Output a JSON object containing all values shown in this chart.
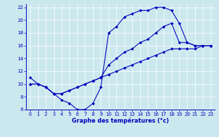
{
  "title": "Graphe des températures (°c)",
  "background_color": "#cce8ef",
  "line_color": "#0000bb",
  "xlim": [
    -0.5,
    23.5
  ],
  "ylim": [
    6,
    22.5
  ],
  "xticks": [
    0,
    1,
    2,
    3,
    4,
    5,
    6,
    7,
    8,
    9,
    10,
    11,
    12,
    13,
    14,
    15,
    16,
    17,
    18,
    19,
    20,
    21,
    22,
    23
  ],
  "yticks": [
    6,
    8,
    10,
    12,
    14,
    16,
    18,
    20,
    22
  ],
  "line1_x": [
    0,
    1,
    2,
    3,
    4,
    5,
    6,
    7,
    8,
    9,
    10,
    11,
    12,
    13,
    14,
    15,
    16,
    17,
    18,
    19,
    20,
    21,
    22,
    23
  ],
  "line1_y": [
    11,
    10,
    9.5,
    8.5,
    7.5,
    7.0,
    6.0,
    6.0,
    7.0,
    9.5,
    18.0,
    19.0,
    20.5,
    21.0,
    21.5,
    21.5,
    22.0,
    22.0,
    21.5,
    19.5,
    16.5,
    16.0,
    16.0,
    16.0
  ],
  "line2_x": [
    0,
    1,
    2,
    3,
    4,
    5,
    6,
    7,
    8,
    9,
    10,
    11,
    12,
    13,
    14,
    15,
    16,
    17,
    18,
    19,
    20,
    21,
    22,
    23
  ],
  "line2_y": [
    10,
    10,
    9.5,
    8.5,
    8.5,
    9.0,
    9.5,
    10.0,
    10.5,
    11.0,
    13.0,
    14.0,
    15.0,
    15.5,
    16.5,
    17.0,
    18.0,
    19.0,
    19.5,
    16.5,
    16.5,
    16.0,
    16.0,
    16.0
  ],
  "line3_x": [
    0,
    1,
    2,
    3,
    4,
    5,
    6,
    7,
    8,
    9,
    10,
    11,
    12,
    13,
    14,
    15,
    16,
    17,
    18,
    19,
    20,
    21,
    22,
    23
  ],
  "line3_y": [
    10,
    10,
    9.5,
    8.5,
    8.5,
    9.0,
    9.5,
    10.0,
    10.5,
    11.0,
    11.5,
    12.0,
    12.5,
    13.0,
    13.5,
    14.0,
    14.5,
    15.0,
    15.5,
    15.5,
    15.5,
    15.5,
    16.0,
    16.0
  ]
}
